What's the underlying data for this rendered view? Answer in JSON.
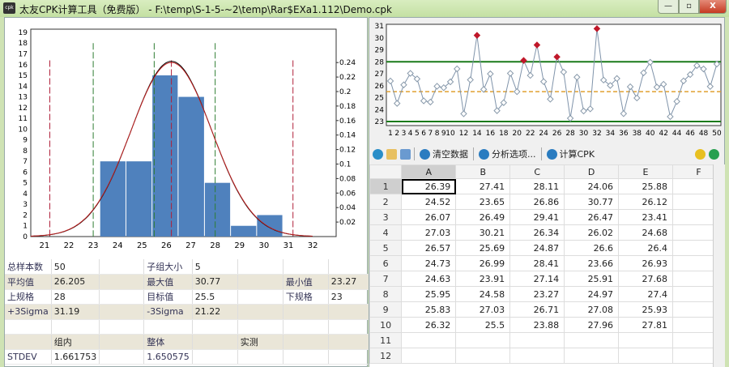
{
  "window": {
    "title": "太友CPK计算工具（免费版） - F:\\temp\\S-1-5-~2\\temp\\Rar$EXa1.112\\Demo.cpk",
    "icon_text": "cpk",
    "minimize": "—",
    "maximize": "▫",
    "close": "X"
  },
  "histogram": {
    "type": "bar",
    "x_ticks": [
      21,
      22,
      23,
      24,
      25,
      26,
      27,
      28,
      29,
      30,
      31,
      32
    ],
    "xlim": [
      20.44,
      32.96
    ],
    "ylim": [
      0,
      19.3
    ],
    "y_ticks": [
      0,
      1,
      2,
      3,
      4,
      5,
      6,
      7,
      8,
      9,
      10,
      11,
      12,
      13,
      14,
      15,
      16,
      17,
      18,
      19
    ],
    "y2_ticks": [
      "0.02",
      "0.04",
      "0.06",
      "0.08",
      "0.1",
      "0.12",
      "0.14",
      "0.16",
      "0.18",
      "0.2",
      "0.22",
      "0.24"
    ],
    "bins": [
      {
        "from": 23.27,
        "to": 24.34,
        "count": 7
      },
      {
        "from": 24.34,
        "to": 25.41,
        "count": 7
      },
      {
        "from": 25.41,
        "to": 26.48,
        "count": 15
      },
      {
        "from": 26.48,
        "to": 27.56,
        "count": 13
      },
      {
        "from": 27.56,
        "to": 28.63,
        "count": 5
      },
      {
        "from": 28.63,
        "to": 29.7,
        "count": 1
      },
      {
        "from": 29.7,
        "to": 30.77,
        "count": 2
      }
    ],
    "bar_color": "#4f81bd",
    "spec_lines": [
      23,
      25.5,
      28
    ],
    "sigma_lines": [
      21.22,
      26.205,
      31.19
    ],
    "spec_color": "#2e7d32",
    "sigma_color": "#b0203a",
    "curves": [
      {
        "mean": 26.205,
        "sd": 1.650575,
        "color": "#000000"
      },
      {
        "mean": 26.205,
        "sd": 1.661753,
        "color": "#c02020"
      }
    ]
  },
  "stats": {
    "rows": [
      [
        "总样本数",
        "50",
        "",
        "子组大小",
        "5",
        "",
        "",
        ""
      ],
      [
        "平均值",
        "26.205",
        "",
        "最大值",
        "30.77",
        "",
        "最小值",
        "23.27"
      ],
      [
        "上规格",
        "28",
        "",
        "目标值",
        "25.5",
        "",
        "下规格",
        "23"
      ],
      [
        "+3Sigma",
        "31.19",
        "",
        "-3Sigma",
        "21.22",
        "",
        "",
        ""
      ],
      [
        "",
        "",
        "",
        "",
        "",
        "",
        "",
        ""
      ],
      [
        "",
        "组内",
        "",
        "整体",
        "",
        "实测",
        "",
        ""
      ],
      [
        "STDEV",
        "1.661753",
        "",
        "1.650575",
        "",
        "",
        "",
        ""
      ]
    ]
  },
  "run_chart": {
    "type": "line",
    "ylim": [
      22.8,
      31.3
    ],
    "y_ticks": [
      23,
      24,
      25,
      26,
      27,
      28,
      29,
      30,
      31
    ],
    "x_ticks": [
      1,
      2,
      3,
      4,
      5,
      6,
      7,
      8,
      9,
      10,
      12,
      14,
      16,
      18,
      20,
      22,
      24,
      26,
      28,
      30,
      32,
      34,
      36,
      38,
      40,
      42,
      44,
      46,
      48,
      50
    ],
    "usl": 28,
    "lsl": 23,
    "target": 25.5,
    "limit_color": "#1a7a1a",
    "target_color": "#e0a030",
    "line_color": "#7f93aa",
    "out_color": "#c0182a"
  },
  "toolbar": {
    "clear": "清空数据",
    "options": "分析选项...",
    "calc": "计算CPK"
  },
  "grid": {
    "columns": [
      "A",
      "B",
      "C",
      "D",
      "E",
      "F"
    ],
    "row_numbers": [
      1,
      2,
      3,
      4,
      5,
      6,
      7,
      8,
      9,
      10,
      11,
      12
    ],
    "rows": [
      [
        "26.39",
        "27.41",
        "28.11",
        "24.06",
        "25.88"
      ],
      [
        "24.52",
        "23.65",
        "26.86",
        "30.77",
        "26.12"
      ],
      [
        "26.07",
        "26.49",
        "29.41",
        "26.47",
        "23.41"
      ],
      [
        "27.03",
        "30.21",
        "26.34",
        "26.02",
        "24.68"
      ],
      [
        "26.57",
        "25.69",
        "24.87",
        "26.6",
        "26.4"
      ],
      [
        "24.73",
        "26.99",
        "28.41",
        "23.66",
        "26.93"
      ],
      [
        "24.63",
        "23.91",
        "27.14",
        "25.91",
        "27.68"
      ],
      [
        "25.95",
        "24.58",
        "23.27",
        "24.97",
        "27.4"
      ],
      [
        "25.83",
        "27.03",
        "26.71",
        "27.08",
        "25.93"
      ],
      [
        "26.32",
        "25.5",
        "23.88",
        "27.96",
        "27.81"
      ],
      [
        "",
        "",
        "",
        "",
        ""
      ],
      [
        "",
        "",
        "",
        "",
        ""
      ]
    ]
  }
}
